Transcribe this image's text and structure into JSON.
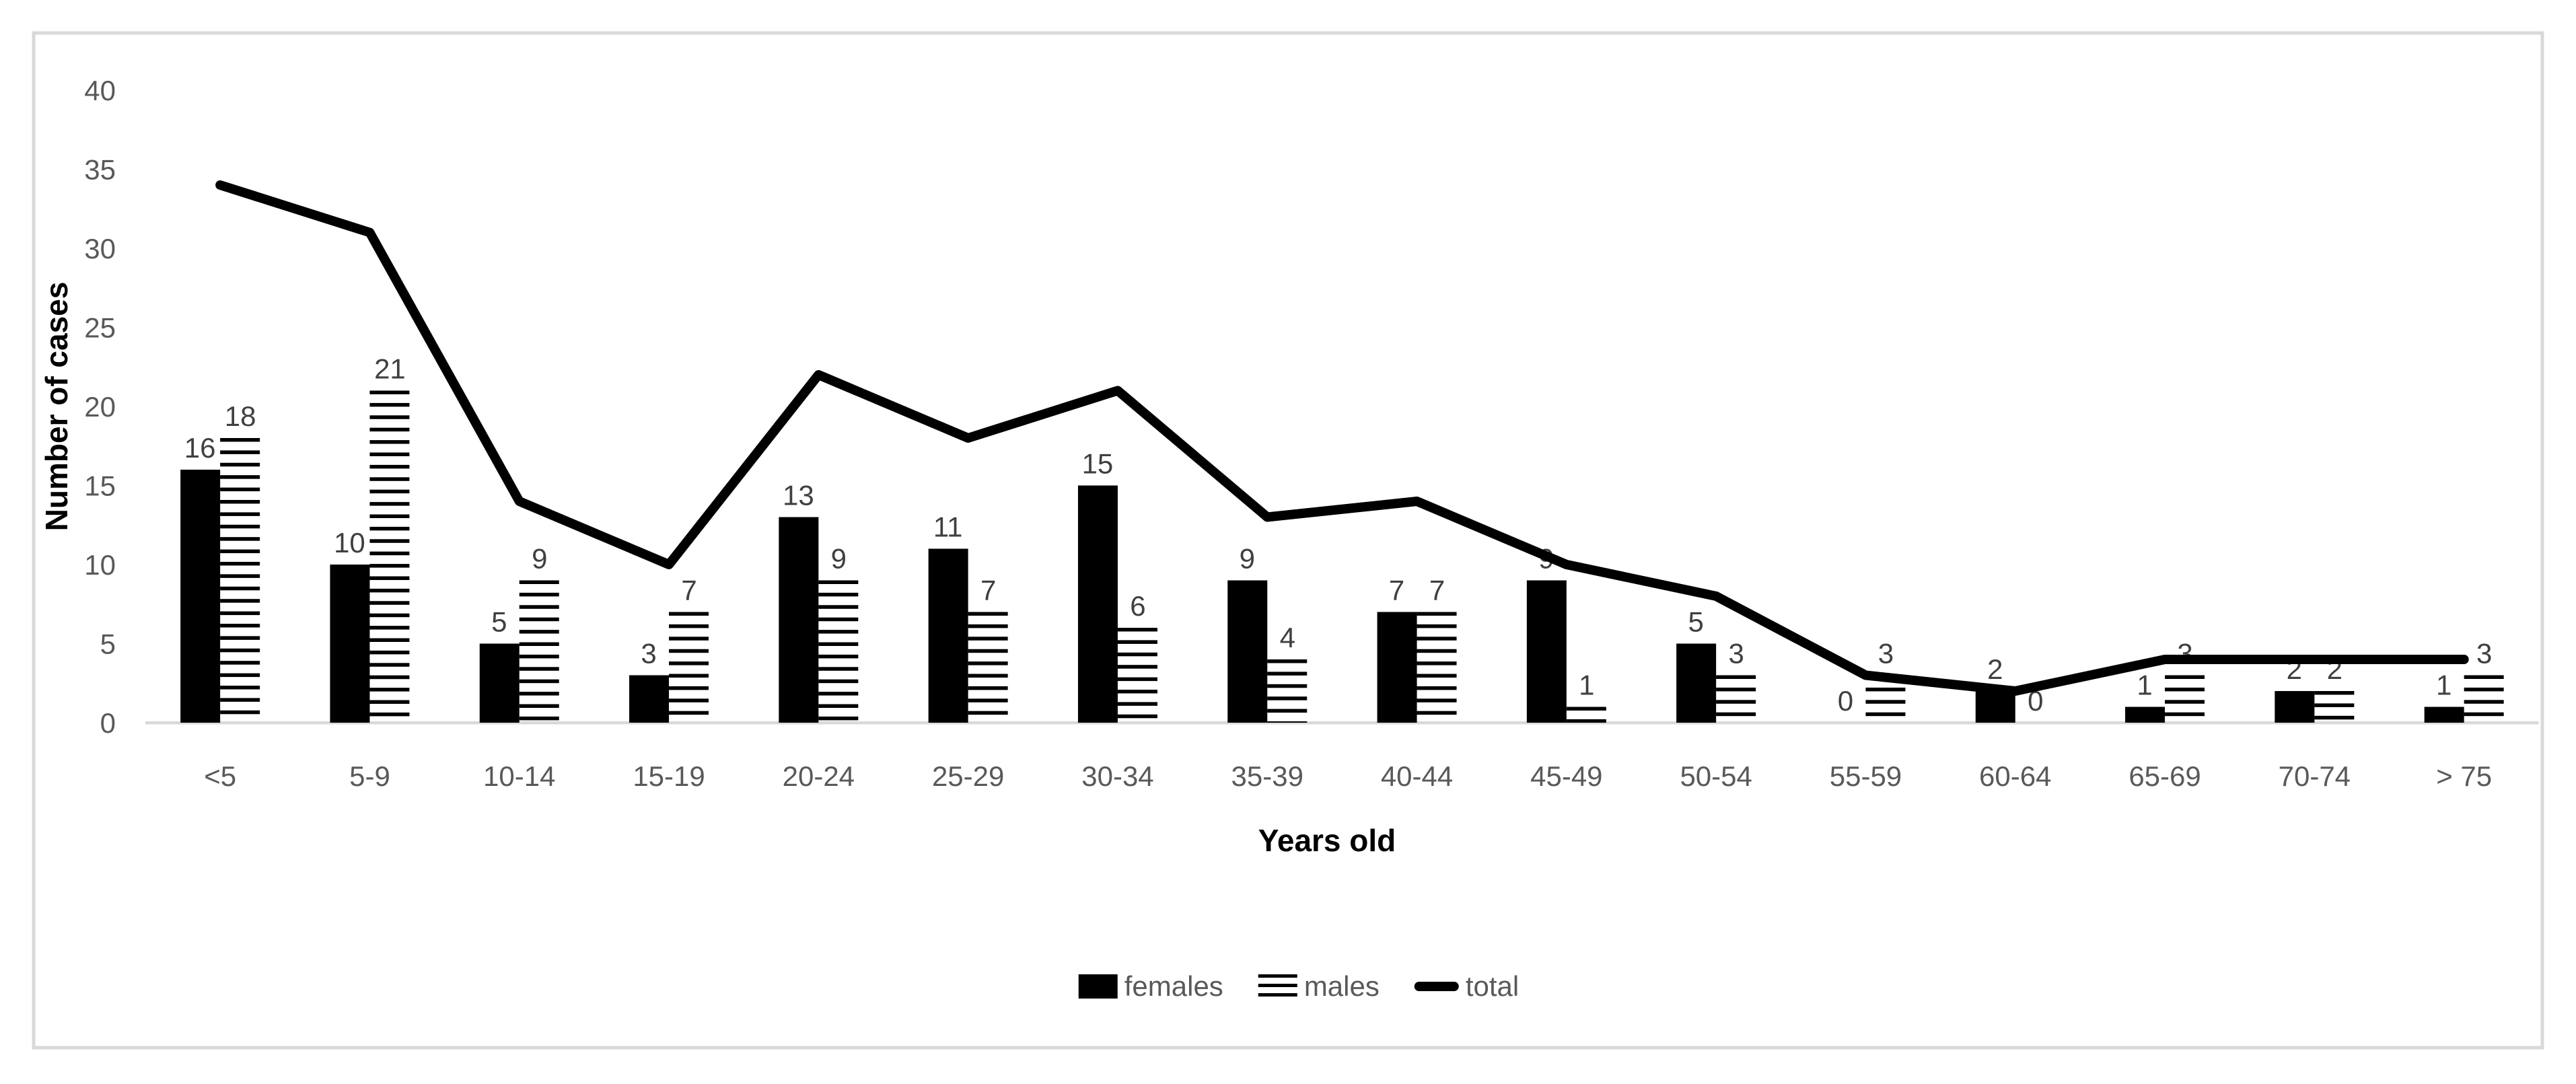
{
  "chart_data": {
    "type": "bar+line combo",
    "title": "",
    "xlabel": "Years old",
    "ylabel": "Number of cases",
    "categories": [
      "<5",
      "5-9",
      "10-14",
      "15-19",
      "20-24",
      "25-29",
      "30-34",
      "35-39",
      "40-44",
      "45-49",
      "50-54",
      "55-59",
      "60-64",
      "65-69",
      "70-74",
      "> 75"
    ],
    "series": [
      {
        "name": "females",
        "type": "bar",
        "pattern": "solid",
        "values": [
          16,
          10,
          5,
          3,
          13,
          11,
          15,
          9,
          7,
          9,
          5,
          0,
          2,
          1,
          2,
          1
        ]
      },
      {
        "name": "males",
        "type": "bar",
        "pattern": "horizontal-stripes",
        "values": [
          18,
          21,
          9,
          7,
          9,
          7,
          6,
          4,
          7,
          1,
          3,
          3,
          0,
          3,
          2,
          3
        ]
      },
      {
        "name": "total",
        "type": "line",
        "values": [
          34,
          31,
          14,
          10,
          22,
          18,
          21,
          13,
          14,
          10,
          8,
          3,
          2,
          4,
          4,
          4
        ]
      }
    ],
    "ylim": [
      0,
      40
    ],
    "ytick_step": 5,
    "yticks": [
      0,
      5,
      10,
      15,
      20,
      25,
      30,
      35,
      40
    ],
    "data_labels": "shown above every bar",
    "grid": false,
    "legend_position": "bottom",
    "colors": {
      "bars": "#000000",
      "line": "#000000",
      "axis_line": "#d9d9d9",
      "frame_border": "#d9d9d9",
      "tick_label": "#595959",
      "data_label": "#404040",
      "axis_title": "#000000",
      "background": "#ffffff"
    }
  }
}
